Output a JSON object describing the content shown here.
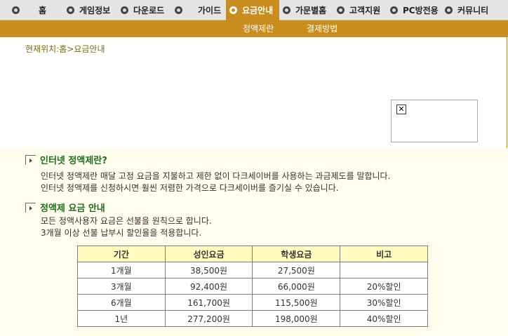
{
  "topnav": {
    "items": [
      {
        "label": "홈"
      },
      {
        "label": "게임정보"
      },
      {
        "label": "다운로드"
      },
      {
        "label": "가이드"
      },
      {
        "label": "요금안내"
      },
      {
        "label": "가문별홈"
      },
      {
        "label": "고객지원"
      },
      {
        "label": "PC방전용"
      },
      {
        "label": "커뮤니티"
      }
    ]
  },
  "subnav": {
    "items": [
      {
        "label": "정액제란"
      },
      {
        "label": "결제방법"
      }
    ]
  },
  "breadcrumb": {
    "prefix": "현재위치:",
    "home": "홈",
    "sep": ">",
    "current": "요금안내"
  },
  "sections": [
    {
      "title": "인터넷 정액제란?",
      "lines": [
        "인터넷 정액제란 매달 고정 요금을 지불하고 제한 없이 다크세이버를 사용하는 과금제도를 말합니다.",
        "인터넷 정액제를 신청하시면 훨씬 저렴한 가격으로 다크세이버를 즐기실 수 있습니다."
      ]
    },
    {
      "title": "정액제 요금 안내",
      "lines": [
        "모든 정액사용자 요금은 선불을 원칙으로 합니다.",
        "3개월 이상 선불 납부시 할인율을 적용합니다."
      ]
    }
  ],
  "price_table": {
    "headers": [
      "기간",
      "성인요금",
      "학생요금",
      "비고"
    ],
    "rows": [
      [
        "1개월",
        "38,500원",
        "27,500원",
        ""
      ],
      [
        "3개월",
        "92,400원",
        "66,000원",
        "20%할인"
      ],
      [
        "6개월",
        "161,700원",
        "115,500원",
        "30%할인"
      ],
      [
        "1년",
        "277,200원",
        "198,000원",
        "40%할인"
      ]
    ]
  },
  "colors": {
    "accent": "#c98d1f",
    "panel_bg": "#fffded",
    "table_header_bg": "#fffbbf",
    "section_title": "#1f6e1f"
  }
}
